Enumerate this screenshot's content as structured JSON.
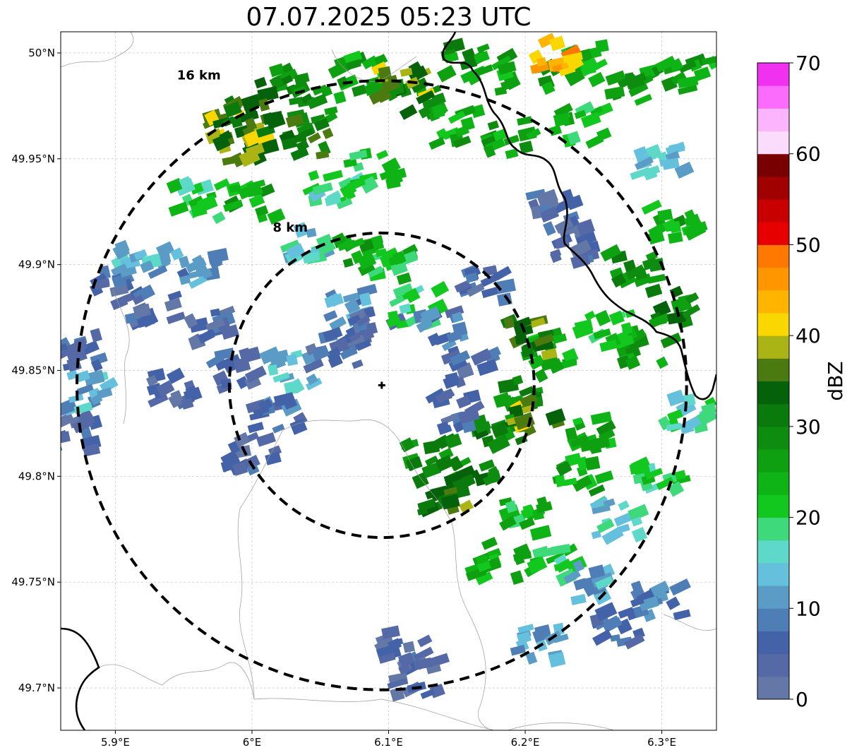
{
  "title": "07.07.2025 05:23 UTC",
  "map": {
    "lon_range": [
      5.86,
      6.34
    ],
    "lat_range": [
      49.68,
      50.01
    ],
    "lon_ticks": [
      {
        "value": 5.9,
        "label": "5.9°E"
      },
      {
        "value": 6.0,
        "label": "6°E"
      },
      {
        "value": 6.1,
        "label": "6.1°E"
      },
      {
        "value": 6.2,
        "label": "6.2°E"
      },
      {
        "value": 6.3,
        "label": "6.3°E"
      }
    ],
    "lat_ticks": [
      {
        "value": 50.0,
        "label": "50°N"
      },
      {
        "value": 49.95,
        "label": "49.95°N"
      },
      {
        "value": 49.9,
        "label": "49.9°N"
      },
      {
        "value": 49.85,
        "label": "49.85°N"
      },
      {
        "value": 49.8,
        "label": "49.8°N"
      },
      {
        "value": 49.75,
        "label": "49.75°N"
      },
      {
        "value": 49.7,
        "label": "49.7°N"
      }
    ],
    "grid": true,
    "radar_site": {
      "lon": 6.095,
      "lat": 49.843
    },
    "range_rings": [
      {
        "radius_km": 8,
        "label": "8 km"
      },
      {
        "radius_km": 16,
        "label": "16 km"
      }
    ]
  },
  "colorbar": {
    "label": "dBZ",
    "min": 0,
    "max": 70,
    "ticks": [
      0,
      10,
      20,
      30,
      40,
      50,
      60,
      70
    ],
    "colors": [
      "#6478a8",
      "#5469a5",
      "#4462a8",
      "#4f7db5",
      "#5a9cc6",
      "#64c0dc",
      "#5ed8c8",
      "#3ed97a",
      "#12c81e",
      "#0eb416",
      "#0fa012",
      "#0d8c10",
      "#0a7a0c",
      "#06620a",
      "#4a7a10",
      "#aab414",
      "#fad700",
      "#ffb400",
      "#ff9600",
      "#ff7800",
      "#e60000",
      "#c80000",
      "#a00000",
      "#780000",
      "#fcdcfc",
      "#fcb4fc",
      "#fc6cfc",
      "#f032f0"
    ]
  },
  "echo_cells": [
    {
      "lon": 6.02,
      "lat": 49.985,
      "dbz": 30
    },
    {
      "lon": 6.05,
      "lat": 49.975,
      "dbz": 28
    },
    {
      "lon": 6.08,
      "lat": 49.99,
      "dbz": 26
    },
    {
      "lon": 6.12,
      "lat": 49.98,
      "dbz": 30
    },
    {
      "lon": 6.16,
      "lat": 49.995,
      "dbz": 28
    },
    {
      "lon": 6.2,
      "lat": 49.99,
      "dbz": 26
    },
    {
      "lon": 6.24,
      "lat": 49.995,
      "dbz": 24
    },
    {
      "lon": 6.28,
      "lat": 49.985,
      "dbz": 27
    },
    {
      "lon": 6.32,
      "lat": 49.99,
      "dbz": 25
    },
    {
      "lon": 6.225,
      "lat": 50.0,
      "dbz": 44
    },
    {
      "lon": 5.985,
      "lat": 49.962,
      "dbz": 38
    },
    {
      "lon": 5.995,
      "lat": 49.955,
      "dbz": 37
    },
    {
      "lon": 6.0,
      "lat": 49.97,
      "dbz": 34
    },
    {
      "lon": 6.11,
      "lat": 49.985,
      "dbz": 38
    },
    {
      "lon": 6.04,
      "lat": 49.96,
      "dbz": 33
    },
    {
      "lon": 6.0,
      "lat": 49.93,
      "dbz": 24
    },
    {
      "lon": 5.96,
      "lat": 49.93,
      "dbz": 20
    },
    {
      "lon": 6.06,
      "lat": 49.935,
      "dbz": 18
    },
    {
      "lon": 6.09,
      "lat": 49.945,
      "dbz": 22
    },
    {
      "lon": 6.15,
      "lat": 49.965,
      "dbz": 24
    },
    {
      "lon": 6.19,
      "lat": 49.96,
      "dbz": 26
    },
    {
      "lon": 6.24,
      "lat": 49.965,
      "dbz": 22
    },
    {
      "lon": 6.22,
      "lat": 49.925,
      "dbz": 6
    },
    {
      "lon": 6.24,
      "lat": 49.91,
      "dbz": 5
    },
    {
      "lon": 6.3,
      "lat": 49.95,
      "dbz": 14
    },
    {
      "lon": 6.31,
      "lat": 49.92,
      "dbz": 24
    },
    {
      "lon": 6.28,
      "lat": 49.9,
      "dbz": 28
    },
    {
      "lon": 6.31,
      "lat": 49.88,
      "dbz": 30
    },
    {
      "lon": 6.29,
      "lat": 49.86,
      "dbz": 26
    },
    {
      "lon": 6.26,
      "lat": 49.87,
      "dbz": 22
    },
    {
      "lon": 6.22,
      "lat": 49.86,
      "dbz": 24
    },
    {
      "lon": 6.2,
      "lat": 49.84,
      "dbz": 28
    },
    {
      "lon": 6.18,
      "lat": 49.82,
      "dbz": 30
    },
    {
      "lon": 6.16,
      "lat": 49.8,
      "dbz": 31
    },
    {
      "lon": 6.14,
      "lat": 49.79,
      "dbz": 34
    },
    {
      "lon": 6.13,
      "lat": 49.81,
      "dbz": 28
    },
    {
      "lon": 6.21,
      "lat": 49.83,
      "dbz": 38
    },
    {
      "lon": 6.2,
      "lat": 49.865,
      "dbz": 34
    },
    {
      "lon": 6.25,
      "lat": 49.82,
      "dbz": 26
    },
    {
      "lon": 6.24,
      "lat": 49.8,
      "dbz": 24
    },
    {
      "lon": 6.2,
      "lat": 49.78,
      "dbz": 22
    },
    {
      "lon": 6.18,
      "lat": 49.76,
      "dbz": 24
    },
    {
      "lon": 6.22,
      "lat": 49.76,
      "dbz": 20
    },
    {
      "lon": 6.27,
      "lat": 49.78,
      "dbz": 16
    },
    {
      "lon": 6.3,
      "lat": 49.8,
      "dbz": 20
    },
    {
      "lon": 6.32,
      "lat": 49.83,
      "dbz": 18
    },
    {
      "lon": 6.25,
      "lat": 49.75,
      "dbz": 12
    },
    {
      "lon": 6.27,
      "lat": 49.73,
      "dbz": 6
    },
    {
      "lon": 6.21,
      "lat": 49.72,
      "dbz": 12
    },
    {
      "lon": 6.3,
      "lat": 49.74,
      "dbz": 8
    },
    {
      "lon": 5.9,
      "lat": 49.89,
      "dbz": 6
    },
    {
      "lon": 5.93,
      "lat": 49.88,
      "dbz": 5
    },
    {
      "lon": 5.92,
      "lat": 49.9,
      "dbz": 12
    },
    {
      "lon": 5.96,
      "lat": 49.9,
      "dbz": 10
    },
    {
      "lon": 5.97,
      "lat": 49.87,
      "dbz": 4
    },
    {
      "lon": 5.99,
      "lat": 49.85,
      "dbz": 6
    },
    {
      "lon": 6.03,
      "lat": 49.85,
      "dbz": 14
    },
    {
      "lon": 6.02,
      "lat": 49.83,
      "dbz": 8
    },
    {
      "lon": 6.07,
      "lat": 49.88,
      "dbz": 10
    },
    {
      "lon": 6.09,
      "lat": 49.87,
      "dbz": 5
    },
    {
      "lon": 6.06,
      "lat": 49.86,
      "dbz": 6
    },
    {
      "lon": 6.1,
      "lat": 49.9,
      "dbz": 22
    },
    {
      "lon": 6.08,
      "lat": 49.905,
      "dbz": 26
    },
    {
      "lon": 6.04,
      "lat": 49.91,
      "dbz": 16
    },
    {
      "lon": 6.12,
      "lat": 49.88,
      "dbz": 18
    },
    {
      "lon": 6.14,
      "lat": 49.87,
      "dbz": 8
    },
    {
      "lon": 6.17,
      "lat": 49.89,
      "dbz": 6
    },
    {
      "lon": 6.16,
      "lat": 49.85,
      "dbz": 5
    },
    {
      "lon": 5.87,
      "lat": 49.86,
      "dbz": 6
    },
    {
      "lon": 5.87,
      "lat": 49.82,
      "dbz": 5
    },
    {
      "lon": 5.88,
      "lat": 49.84,
      "dbz": 12
    },
    {
      "lon": 5.94,
      "lat": 49.84,
      "dbz": 4
    },
    {
      "lon": 6.0,
      "lat": 49.81,
      "dbz": 5
    },
    {
      "lon": 6.15,
      "lat": 49.83,
      "dbz": 6
    },
    {
      "lon": 6.11,
      "lat": 49.72,
      "dbz": 4
    },
    {
      "lon": 6.12,
      "lat": 49.705,
      "dbz": 3
    }
  ]
}
